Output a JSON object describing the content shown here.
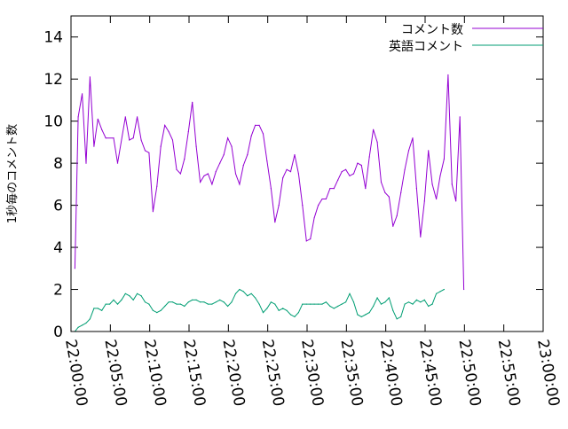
{
  "chart_data": {
    "type": "line",
    "title": "",
    "xlabel": "",
    "ylabel": "1秒毎のコメント数",
    "xlim": [
      "22:00:00",
      "23:00:00"
    ],
    "ylim": [
      0,
      15
    ],
    "grid": false,
    "legend_position": "top-right",
    "x_ticks": [
      "22:00:00",
      "22:05:00",
      "22:10:00",
      "22:15:00",
      "22:20:00",
      "22:25:00",
      "22:30:00",
      "22:35:00",
      "22:40:00",
      "22:45:00",
      "22:50:00",
      "22:55:00",
      "23:00:00"
    ],
    "y_ticks": [
      "0",
      "2",
      "4",
      "6",
      "8",
      "10",
      "12",
      "14"
    ],
    "series": [
      {
        "name": "コメント数",
        "color": "#9400d3",
        "points": [
          [
            "22:00:30",
            3.0
          ],
          [
            "22:00:55",
            10.2
          ],
          [
            "22:01:25",
            11.3
          ],
          [
            "22:01:55",
            8.0
          ],
          [
            "22:02:25",
            12.1
          ],
          [
            "22:02:55",
            8.8
          ],
          [
            "22:03:25",
            10.1
          ],
          [
            "22:03:55",
            9.6
          ],
          [
            "22:04:25",
            9.2
          ],
          [
            "22:05:25",
            9.2
          ],
          [
            "22:05:55",
            8.0
          ],
          [
            "22:06:55",
            10.2
          ],
          [
            "22:07:25",
            9.1
          ],
          [
            "22:07:55",
            9.2
          ],
          [
            "22:08:25",
            10.2
          ],
          [
            "22:08:55",
            9.1
          ],
          [
            "22:09:25",
            8.6
          ],
          [
            "22:09:55",
            8.5
          ],
          [
            "22:10:25",
            5.7
          ],
          [
            "22:10:55",
            6.9
          ],
          [
            "22:11:25",
            8.8
          ],
          [
            "22:11:55",
            9.8
          ],
          [
            "22:12:25",
            9.5
          ],
          [
            "22:12:55",
            9.1
          ],
          [
            "22:13:25",
            7.7
          ],
          [
            "22:13:55",
            7.5
          ],
          [
            "22:14:25",
            8.2
          ],
          [
            "22:14:55",
            9.5
          ],
          [
            "22:15:25",
            10.9
          ],
          [
            "22:15:55",
            8.8
          ],
          [
            "22:16:25",
            7.1
          ],
          [
            "22:16:55",
            7.4
          ],
          [
            "22:17:25",
            7.5
          ],
          [
            "22:17:55",
            7.0
          ],
          [
            "22:18:25",
            7.6
          ],
          [
            "22:18:55",
            8.0
          ],
          [
            "22:19:25",
            8.4
          ],
          [
            "22:19:55",
            9.2
          ],
          [
            "22:20:25",
            8.8
          ],
          [
            "22:20:55",
            7.5
          ],
          [
            "22:21:25",
            7.0
          ],
          [
            "22:21:55",
            7.9
          ],
          [
            "22:22:25",
            8.4
          ],
          [
            "22:22:55",
            9.3
          ],
          [
            "22:23:25",
            9.8
          ],
          [
            "22:23:55",
            9.8
          ],
          [
            "22:24:25",
            9.4
          ],
          [
            "22:24:55",
            8.1
          ],
          [
            "22:25:25",
            6.8
          ],
          [
            "22:25:55",
            5.2
          ],
          [
            "22:26:25",
            6.0
          ],
          [
            "22:26:55",
            7.3
          ],
          [
            "22:27:25",
            7.7
          ],
          [
            "22:27:55",
            7.6
          ],
          [
            "22:28:25",
            8.4
          ],
          [
            "22:28:55",
            7.5
          ],
          [
            "22:29:25",
            6.0
          ],
          [
            "22:29:55",
            4.3
          ],
          [
            "22:30:25",
            4.4
          ],
          [
            "22:30:55",
            5.4
          ],
          [
            "22:31:25",
            6.0
          ],
          [
            "22:31:55",
            6.3
          ],
          [
            "22:32:25",
            6.3
          ],
          [
            "22:32:55",
            6.8
          ],
          [
            "22:33:25",
            6.8
          ],
          [
            "22:33:55",
            7.2
          ],
          [
            "22:34:25",
            7.6
          ],
          [
            "22:34:55",
            7.7
          ],
          [
            "22:35:25",
            7.4
          ],
          [
            "22:35:55",
            7.5
          ],
          [
            "22:36:25",
            8.0
          ],
          [
            "22:36:55",
            7.9
          ],
          [
            "22:37:25",
            6.8
          ],
          [
            "22:37:55",
            8.3
          ],
          [
            "22:38:25",
            9.6
          ],
          [
            "22:38:55",
            9.0
          ],
          [
            "22:39:25",
            7.1
          ],
          [
            "22:39:55",
            6.6
          ],
          [
            "22:40:25",
            6.4
          ],
          [
            "22:40:55",
            5.0
          ],
          [
            "22:41:25",
            5.5
          ],
          [
            "22:41:55",
            6.6
          ],
          [
            "22:42:25",
            7.7
          ],
          [
            "22:42:55",
            8.6
          ],
          [
            "22:43:25",
            9.2
          ],
          [
            "22:43:55",
            6.8
          ],
          [
            "22:44:25",
            4.5
          ],
          [
            "22:44:55",
            6.2
          ],
          [
            "22:45:25",
            8.6
          ],
          [
            "22:45:55",
            7.0
          ],
          [
            "22:46:25",
            6.3
          ],
          [
            "22:46:55",
            7.4
          ],
          [
            "22:47:25",
            8.2
          ],
          [
            "22:47:55",
            12.2
          ],
          [
            "22:48:25",
            7.0
          ],
          [
            "22:48:55",
            6.2
          ],
          [
            "22:49:25",
            10.2
          ],
          [
            "22:49:55",
            2.0
          ]
        ]
      },
      {
        "name": "英語コメント",
        "color": "#009e73",
        "points": [
          [
            "22:00:30",
            0.0
          ],
          [
            "22:00:55",
            0.2
          ],
          [
            "22:01:25",
            0.3
          ],
          [
            "22:01:55",
            0.4
          ],
          [
            "22:02:25",
            0.6
          ],
          [
            "22:02:55",
            1.1
          ],
          [
            "22:03:25",
            1.1
          ],
          [
            "22:03:55",
            1.0
          ],
          [
            "22:04:25",
            1.3
          ],
          [
            "22:04:55",
            1.3
          ],
          [
            "22:05:25",
            1.5
          ],
          [
            "22:05:55",
            1.3
          ],
          [
            "22:06:25",
            1.5
          ],
          [
            "22:06:55",
            1.8
          ],
          [
            "22:07:25",
            1.7
          ],
          [
            "22:07:55",
            1.5
          ],
          [
            "22:08:25",
            1.8
          ],
          [
            "22:08:55",
            1.7
          ],
          [
            "22:09:25",
            1.4
          ],
          [
            "22:09:55",
            1.3
          ],
          [
            "22:10:25",
            1.0
          ],
          [
            "22:10:55",
            0.9
          ],
          [
            "22:11:25",
            1.0
          ],
          [
            "22:11:55",
            1.2
          ],
          [
            "22:12:25",
            1.4
          ],
          [
            "22:12:55",
            1.4
          ],
          [
            "22:13:25",
            1.3
          ],
          [
            "22:13:55",
            1.3
          ],
          [
            "22:14:25",
            1.2
          ],
          [
            "22:14:55",
            1.4
          ],
          [
            "22:15:25",
            1.5
          ],
          [
            "22:15:55",
            1.5
          ],
          [
            "22:16:25",
            1.4
          ],
          [
            "22:16:55",
            1.4
          ],
          [
            "22:17:25",
            1.3
          ],
          [
            "22:17:55",
            1.3
          ],
          [
            "22:18:25",
            1.4
          ],
          [
            "22:18:55",
            1.5
          ],
          [
            "22:19:25",
            1.4
          ],
          [
            "22:19:55",
            1.2
          ],
          [
            "22:20:25",
            1.4
          ],
          [
            "22:20:55",
            1.8
          ],
          [
            "22:21:25",
            2.0
          ],
          [
            "22:21:55",
            1.9
          ],
          [
            "22:22:25",
            1.7
          ],
          [
            "22:22:55",
            1.8
          ],
          [
            "22:23:25",
            1.6
          ],
          [
            "22:23:55",
            1.3
          ],
          [
            "22:24:25",
            0.9
          ],
          [
            "22:24:55",
            1.1
          ],
          [
            "22:25:25",
            1.4
          ],
          [
            "22:25:55",
            1.3
          ],
          [
            "22:26:25",
            1.0
          ],
          [
            "22:26:55",
            1.1
          ],
          [
            "22:27:25",
            1.0
          ],
          [
            "22:27:55",
            0.8
          ],
          [
            "22:28:25",
            0.7
          ],
          [
            "22:28:55",
            0.9
          ],
          [
            "22:29:25",
            1.3
          ],
          [
            "22:29:55",
            1.3
          ],
          [
            "22:30:25",
            1.3
          ],
          [
            "22:30:55",
            1.3
          ],
          [
            "22:31:25",
            1.3
          ],
          [
            "22:31:55",
            1.3
          ],
          [
            "22:32:25",
            1.4
          ],
          [
            "22:32:55",
            1.2
          ],
          [
            "22:33:25",
            1.1
          ],
          [
            "22:33:55",
            1.2
          ],
          [
            "22:34:25",
            1.3
          ],
          [
            "22:34:55",
            1.4
          ],
          [
            "22:35:25",
            1.8
          ],
          [
            "22:35:55",
            1.4
          ],
          [
            "22:36:25",
            0.8
          ],
          [
            "22:36:55",
            0.7
          ],
          [
            "22:37:25",
            0.8
          ],
          [
            "22:37:55",
            0.9
          ],
          [
            "22:38:25",
            1.2
          ],
          [
            "22:38:55",
            1.6
          ],
          [
            "22:39:25",
            1.3
          ],
          [
            "22:39:55",
            1.4
          ],
          [
            "22:40:25",
            1.6
          ],
          [
            "22:40:55",
            1.0
          ],
          [
            "22:41:25",
            0.6
          ],
          [
            "22:41:55",
            0.7
          ],
          [
            "22:42:25",
            1.3
          ],
          [
            "22:42:55",
            1.4
          ],
          [
            "22:43:25",
            1.3
          ],
          [
            "22:43:55",
            1.5
          ],
          [
            "22:44:25",
            1.4
          ],
          [
            "22:44:55",
            1.5
          ],
          [
            "22:45:25",
            1.2
          ],
          [
            "22:45:55",
            1.3
          ],
          [
            "22:46:25",
            1.8
          ],
          [
            "22:46:55",
            1.9
          ],
          [
            "22:47:25",
            2.0
          ]
        ]
      }
    ]
  }
}
